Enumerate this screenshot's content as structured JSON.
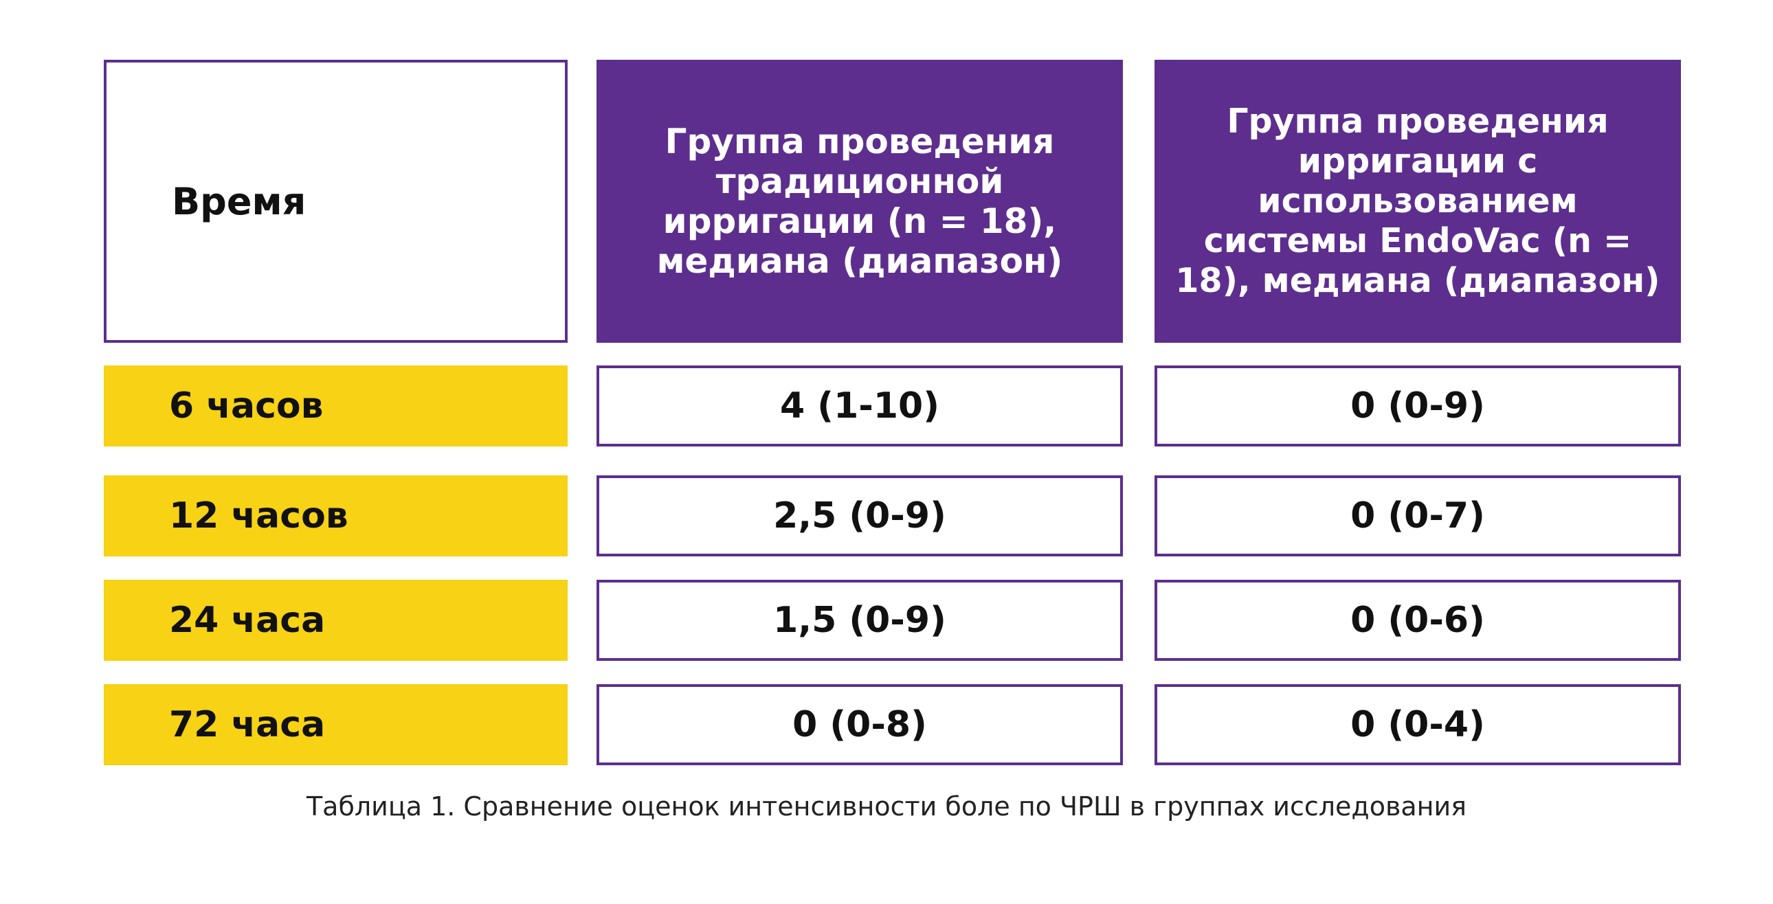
{
  "table": {
    "header": {
      "time": "Время",
      "group_traditional": "Группа проведения традиционной ирригации (n = 18), медиана (диапазон)",
      "group_endovac": "Группа проведения ирригации с использованием системы EndoVac (n = 18), медиана (диапазон)"
    },
    "rows": [
      {
        "time": "6 часов",
        "traditional": "4 (1-10)",
        "endovac": "0 (0-9)"
      },
      {
        "time": "12 часов",
        "traditional": "2,5 (0-9)",
        "endovac": "0 (0-7)"
      },
      {
        "time": "24 часа",
        "traditional": "1,5 (0-9)",
        "endovac": "0 (0-6)"
      },
      {
        "time": "72 часа",
        "traditional": "0 (0-8)",
        "endovac": "0 (0-4)"
      }
    ]
  },
  "caption": "Таблица 1. Сравнение оценок интенсивности боле по ЧРШ в группах исследования",
  "colors": {
    "header_purple": "#5d2e8e",
    "time_yellow": "#f7d215"
  }
}
